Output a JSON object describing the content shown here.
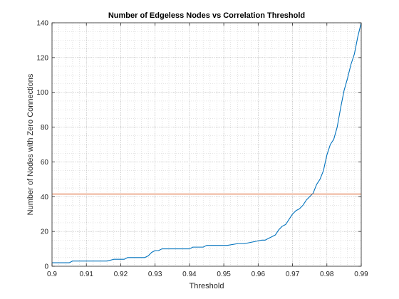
{
  "chart_data": {
    "type": "line",
    "title": "Number of Edgeless Nodes vs Correlation Threshold",
    "xlabel": "Threshold",
    "ylabel": "Number of Nodes with Zero Connections",
    "xlim": [
      0.9,
      0.99
    ],
    "ylim": [
      0,
      140
    ],
    "xticks": [
      0.9,
      0.91,
      0.92,
      0.93,
      0.94,
      0.95,
      0.96,
      0.97,
      0.98,
      0.99
    ],
    "xtick_labels": [
      "0.9",
      "0.91",
      "0.92",
      "0.93",
      "0.94",
      "0.95",
      "0.96",
      "0.97",
      "0.98",
      "0.99"
    ],
    "yticks": [
      0,
      20,
      40,
      60,
      80,
      100,
      120,
      140
    ],
    "ytick_labels": [
      "0",
      "20",
      "40",
      "60",
      "80",
      "100",
      "120",
      "140"
    ],
    "grid": "on (major and minor, dotted)",
    "series": [
      {
        "color": "#0072bd",
        "x": [
          0.9,
          0.904,
          0.905,
          0.906,
          0.914,
          0.915,
          0.916,
          0.918,
          0.919,
          0.921,
          0.922,
          0.923,
          0.927,
          0.928,
          0.929,
          0.93,
          0.931,
          0.932,
          0.933,
          0.934,
          0.94,
          0.941,
          0.944,
          0.945,
          0.946,
          0.95,
          0.951,
          0.954,
          0.955,
          0.956,
          0.961,
          0.962,
          0.963,
          0.964,
          0.965,
          0.966,
          0.967,
          0.968,
          0.969,
          0.97,
          0.971,
          0.972,
          0.973,
          0.974,
          0.975,
          0.976,
          0.977,
          0.978,
          0.979,
          0.98,
          0.981,
          0.982,
          0.983,
          0.984,
          0.985,
          0.986,
          0.987,
          0.988,
          0.989,
          0.99
        ],
        "y": [
          2,
          2,
          2,
          3,
          3,
          3,
          3,
          4,
          4,
          4,
          5,
          5,
          5,
          6,
          8,
          9,
          9,
          10,
          10,
          10,
          10,
          11,
          11,
          12,
          12,
          12,
          12,
          13,
          13,
          13,
          15,
          15,
          16,
          17,
          18,
          21,
          23,
          24,
          27,
          30,
          32,
          33,
          35,
          38,
          40,
          42,
          47,
          50,
          55,
          64,
          70,
          73,
          80,
          91,
          101,
          108,
          116,
          122,
          132,
          140
        ]
      },
      {
        "color": "#d95319",
        "x": [
          0.9,
          0.99
        ],
        "y": [
          41.5,
          41.5
        ]
      }
    ]
  }
}
